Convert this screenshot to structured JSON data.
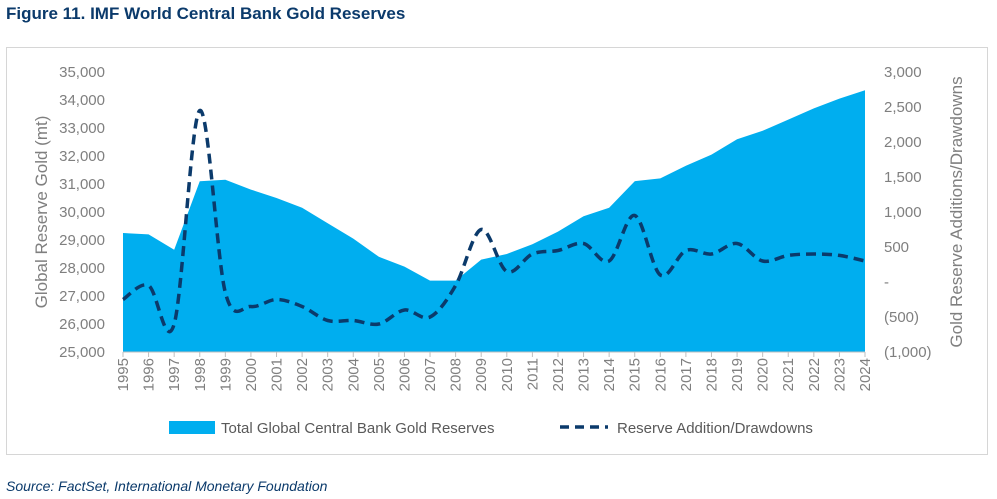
{
  "title": "Figure 11. IMF World Central Bank Gold Reserves",
  "source": "Source: FactSet, International Monetary Foundation",
  "colors": {
    "area": "#00aeef",
    "line": "#0b3a6b",
    "tick": "#7f7f7f"
  },
  "chart_data": {
    "type": "area",
    "x": [
      "1995",
      "1996",
      "1997",
      "1998",
      "1999",
      "2000",
      "2001",
      "2002",
      "2003",
      "2004",
      "2005",
      "2006",
      "2007",
      "2008",
      "2009",
      "2010",
      "2011",
      "2012",
      "2013",
      "2014",
      "2015",
      "2016",
      "2017",
      "2018",
      "2019",
      "2020",
      "2021",
      "2022",
      "2023",
      "2024"
    ],
    "series": [
      {
        "name": "Total Global Central Bank Gold Reserves",
        "type": "area",
        "axis": "left",
        "values": [
          29250,
          29200,
          28650,
          31100,
          31150,
          30800,
          30500,
          30150,
          29600,
          29050,
          28400,
          28050,
          27550,
          27550,
          28300,
          28500,
          28850,
          29300,
          29850,
          30150,
          31100,
          31200,
          31650,
          32050,
          32600,
          32900,
          33300,
          33700,
          34050,
          34350
        ]
      },
      {
        "name": "Reserve Addition/Drawdowns",
        "type": "line",
        "style": "dashed",
        "axis": "right",
        "values": [
          -250,
          -50,
          -600,
          2450,
          -150,
          -350,
          -250,
          -350,
          -550,
          -550,
          -600,
          -400,
          -500,
          -50,
          750,
          150,
          400,
          450,
          550,
          300,
          950,
          100,
          450,
          400,
          550,
          300,
          380,
          400,
          380,
          300
        ]
      }
    ],
    "ylabel": "Global Reserve Gold (mt)",
    "y2label": "Gold Reserve Additions/Drawdowns",
    "ylim": [
      25000,
      35000
    ],
    "y2lim": [
      -1000,
      3000
    ],
    "yticks": [
      "25,000",
      "26,000",
      "27,000",
      "28,000",
      "29,000",
      "30,000",
      "31,000",
      "32,000",
      "33,000",
      "34,000",
      "35,000"
    ],
    "y2ticks": [
      "(1,000)",
      "(500)",
      "-",
      "500",
      "1,000",
      "1,500",
      "2,000",
      "2,500",
      "3,000"
    ],
    "legend_position": "bottom"
  }
}
